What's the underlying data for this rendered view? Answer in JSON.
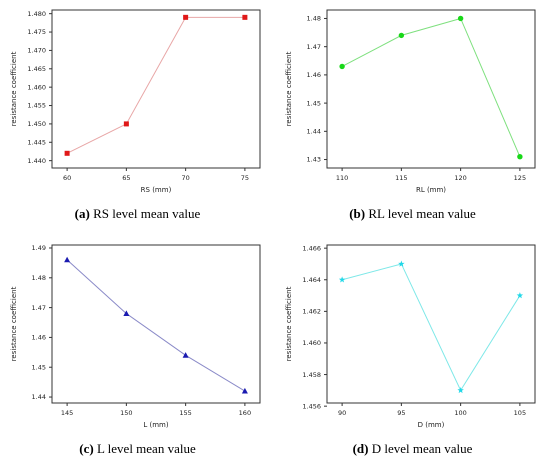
{
  "chart_data": [
    {
      "type": "line",
      "panel": "a",
      "caption_letter": "(a)",
      "caption_text": " RS level mean value",
      "xlabel": "RS (mm)",
      "ylabel": "resistance coefficient",
      "x": [
        60,
        65,
        70,
        75
      ],
      "x_ticks": [
        "60",
        "65",
        "70",
        "75"
      ],
      "y_ticks": [
        "1.440",
        "1.445",
        "1.450",
        "1.455",
        "1.460",
        "1.465",
        "1.470",
        "1.475",
        "1.480"
      ],
      "ylim": [
        1.438,
        1.481
      ],
      "series": [
        {
          "values": [
            1.442,
            1.45,
            1.479,
            1.479
          ],
          "color": "#e8a6a6",
          "marker": "square",
          "marker_color": "#e01818"
        }
      ]
    },
    {
      "type": "line",
      "panel": "b",
      "caption_letter": "(b)",
      "caption_text": " RL level mean value",
      "xlabel": "RL (mm)",
      "ylabel": "resistance coefficient",
      "x": [
        110,
        115,
        120,
        125
      ],
      "x_ticks": [
        "110",
        "115",
        "120",
        "125"
      ],
      "y_ticks": [
        "1.43",
        "1.44",
        "1.45",
        "1.46",
        "1.47",
        "1.48"
      ],
      "ylim": [
        1.427,
        1.483
      ],
      "series": [
        {
          "values": [
            1.463,
            1.474,
            1.48,
            1.431
          ],
          "color": "#7ee07e",
          "marker": "circle",
          "marker_color": "#18d818"
        }
      ]
    },
    {
      "type": "line",
      "panel": "c",
      "caption_letter": "(c)",
      "caption_text": " L level mean value",
      "xlabel": "L (mm)",
      "ylabel": "resistance coefficient",
      "x": [
        145,
        150,
        155,
        160
      ],
      "x_ticks": [
        "145",
        "150",
        "155",
        "160"
      ],
      "y_ticks": [
        "1.44",
        "1.45",
        "1.46",
        "1.47",
        "1.48",
        "1.49"
      ],
      "ylim": [
        1.438,
        1.491
      ],
      "series": [
        {
          "values": [
            1.486,
            1.468,
            1.454,
            1.442
          ],
          "color": "#8a8ac8",
          "marker": "triangle",
          "marker_color": "#1a1ab0"
        }
      ]
    },
    {
      "type": "line",
      "panel": "d",
      "caption_letter": "(d)",
      "caption_text": " D level mean value",
      "xlabel": "D (mm)",
      "ylabel": "resistance coefficient",
      "x": [
        90,
        95,
        100,
        105
      ],
      "x_ticks": [
        "90",
        "95",
        "100",
        "105"
      ],
      "y_ticks": [
        "1.456",
        "1.458",
        "1.460",
        "1.462",
        "1.464",
        "1.466"
      ],
      "ylim": [
        1.4562,
        1.4662
      ],
      "series": [
        {
          "values": [
            1.464,
            1.465,
            1.457,
            1.463
          ],
          "color": "#7ee8e8",
          "marker": "star",
          "marker_color": "#20d8e8"
        }
      ]
    }
  ]
}
